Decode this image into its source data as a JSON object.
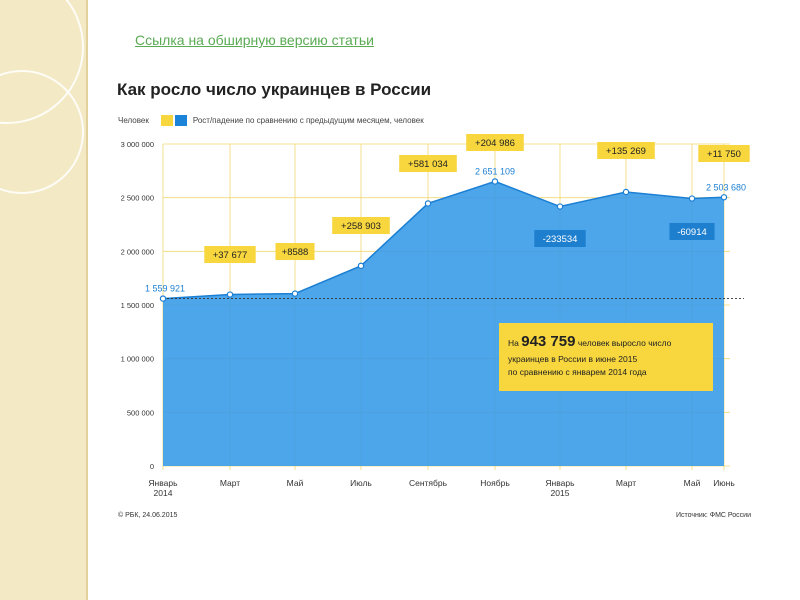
{
  "link": {
    "label": "Ссылка на обширную версию статьи"
  },
  "chart_data": {
    "type": "area",
    "title": "Как росло число украинцев в России",
    "legend": {
      "series_label": "Человек",
      "change_label": "Рост/падение по сравнению с предыдущим месяцем, человек"
    },
    "x": [
      "Январь 2014",
      "Март",
      "Май",
      "Июль",
      "Сентябрь",
      "Ноябрь",
      "Январь 2015",
      "Март",
      "Май",
      "Июнь"
    ],
    "x_ticks": [
      [
        "Январь",
        "2014"
      ],
      [
        "Март"
      ],
      [
        "Май"
      ],
      [
        "Июль"
      ],
      [
        "Сентябрь"
      ],
      [
        "Ноябрь"
      ],
      [
        "Январь",
        "2015"
      ],
      [
        "Март"
      ],
      [
        "Май"
      ],
      [
        "Июнь"
      ]
    ],
    "values": [
      1559921,
      1597598,
      1606186,
      1865089,
      2446123,
      2651109,
      2417575,
      2552844,
      2491930,
      2503680
    ],
    "value_labels": [
      "1 559 921",
      "",
      "",
      "",
      "",
      "2 651 109",
      "",
      "",
      "",
      "2 503 680"
    ],
    "changes": [
      "",
      "+37 677",
      "+8588",
      "+258 903",
      "+581 034",
      "+204 986",
      "-233534",
      "+135 269",
      "-60914",
      "+11 750"
    ],
    "change_colors": [
      "",
      "yellow",
      "yellow",
      "yellow",
      "yellow",
      "yellow",
      "blue",
      "yellow",
      "blue",
      "yellow"
    ],
    "baseline_value": 1559921,
    "ylim": [
      0,
      3000000
    ],
    "yticks": [
      0,
      500000,
      1000000,
      1500000,
      2000000,
      2500000,
      3000000
    ],
    "ytick_labels": [
      "0",
      "500 000",
      "1 000 000",
      "1 500 000",
      "2 000 000",
      "2 500 000",
      "3 000 000"
    ],
    "grid": true,
    "colors": {
      "area": "#3a9be8",
      "line": "#1b7fd3",
      "yellow": "#f7d63e",
      "blue": "#1e7fcf",
      "grid": "#f0d873"
    },
    "callout": {
      "prefix": "На",
      "number": "943 759",
      "text_line1": "человек выросло число",
      "text_line2": "украинцев в России в июне 2015",
      "text_line3": "по сравнению с январем 2014 года"
    }
  },
  "footer": {
    "left": "© РБК, 24.06.2015",
    "right": "Источник: ФМС России"
  }
}
